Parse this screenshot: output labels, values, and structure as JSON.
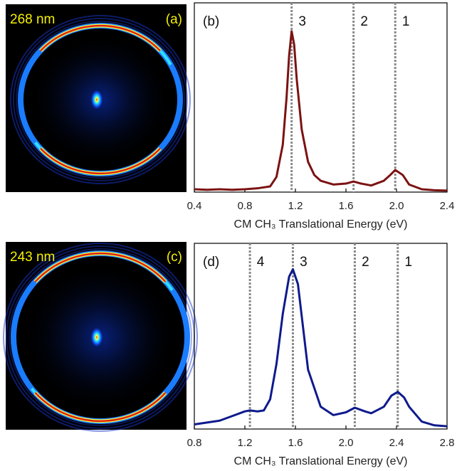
{
  "images": [
    {
      "wavelength": "268 nm",
      "label": "(a)"
    },
    {
      "wavelength": "243 nm",
      "label": "(c)"
    }
  ],
  "chart_data": [
    {
      "type": "line",
      "panel_label": "(b)",
      "xlabel": "CM CH₃ Translational Energy (eV)",
      "color": "#7b1212",
      "x": [
        0.4,
        0.5,
        0.6,
        0.7,
        0.8,
        0.9,
        1.0,
        1.05,
        1.1,
        1.13,
        1.15,
        1.17,
        1.19,
        1.21,
        1.25,
        1.3,
        1.35,
        1.4,
        1.5,
        1.6,
        1.66,
        1.72,
        1.8,
        1.9,
        1.95,
        1.99,
        2.05,
        2.1,
        2.2,
        2.3,
        2.4
      ],
      "values": [
        0.015,
        0.012,
        0.015,
        0.012,
        0.015,
        0.02,
        0.03,
        0.08,
        0.25,
        0.5,
        0.72,
        0.85,
        0.78,
        0.6,
        0.33,
        0.16,
        0.09,
        0.06,
        0.04,
        0.045,
        0.056,
        0.045,
        0.035,
        0.06,
        0.09,
        0.117,
        0.09,
        0.04,
        0.015,
        0.01,
        0.008
      ],
      "markers": [
        {
          "x": 1.17,
          "label": "3"
        },
        {
          "x": 1.66,
          "label": "2"
        },
        {
          "x": 1.99,
          "label": "1"
        }
      ],
      "xlim": [
        0.4,
        2.4
      ],
      "xticks": [
        0.4,
        0.8,
        1.2,
        1.6,
        {
          "value": 2,
          "label": "2.0"
        },
        2.4
      ],
      "ylim": [
        0,
        1
      ]
    },
    {
      "type": "line",
      "panel_label": "(d)",
      "xlabel": "CM CH₃ Translational Energy (eV)",
      "color": "#0e1a8c",
      "x": [
        0.8,
        0.9,
        1.0,
        1.1,
        1.2,
        1.24,
        1.3,
        1.35,
        1.4,
        1.45,
        1.5,
        1.55,
        1.58,
        1.62,
        1.66,
        1.7,
        1.8,
        1.9,
        2.0,
        2.07,
        2.15,
        2.2,
        2.3,
        2.36,
        2.41,
        2.46,
        2.5,
        2.6,
        2.7,
        2.8
      ],
      "values": [
        0.025,
        0.035,
        0.045,
        0.07,
        0.095,
        0.1,
        0.095,
        0.1,
        0.16,
        0.35,
        0.62,
        0.82,
        0.86,
        0.78,
        0.55,
        0.32,
        0.12,
        0.075,
        0.09,
        0.115,
        0.095,
        0.085,
        0.12,
        0.18,
        0.2,
        0.17,
        0.12,
        0.04,
        0.02,
        0.015
      ],
      "markers": [
        {
          "x": 1.24,
          "label": "4"
        },
        {
          "x": 1.58,
          "label": "3"
        },
        {
          "x": 2.07,
          "label": "2"
        },
        {
          "x": 2.41,
          "label": "1"
        }
      ],
      "xlim": [
        0.8,
        2.8
      ],
      "xticks": [
        0.8,
        1.2,
        1.6,
        {
          "value": 2,
          "label": "2.0"
        },
        2.4,
        2.8
      ],
      "ylim": [
        0,
        1
      ]
    }
  ]
}
